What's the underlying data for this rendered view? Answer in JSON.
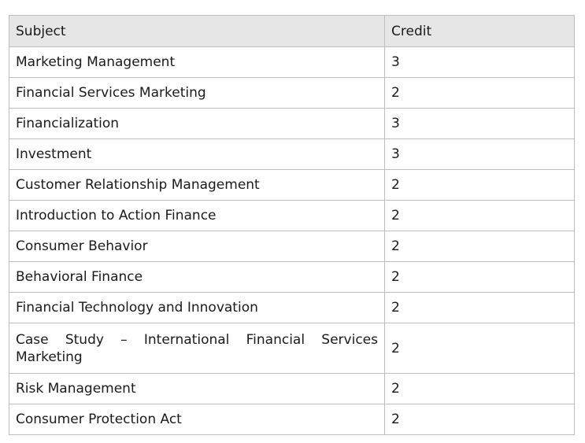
{
  "table": {
    "headers": {
      "subject": "Subject",
      "credit": "Credit"
    },
    "rows": [
      {
        "subject": "Marketing Management",
        "credit": "3"
      },
      {
        "subject": "Financial Services Marketing",
        "credit": "2"
      },
      {
        "subject": "Financialization",
        "credit": "3"
      },
      {
        "subject": "Investment",
        "credit": "3"
      },
      {
        "subject": "Customer Relationship Management",
        "credit": "2"
      },
      {
        "subject": "Introduction to Action Finance",
        "credit": "2"
      },
      {
        "subject": "Consumer Behavior",
        "credit": "2"
      },
      {
        "subject": "Behavioral Finance",
        "credit": "2"
      },
      {
        "subject": "Financial Technology and Innovation",
        "credit": "2"
      },
      {
        "subject": "Case Study – International Financial Services Marketing",
        "credit": "2"
      },
      {
        "subject": "Risk Management",
        "credit": "2"
      },
      {
        "subject": "Consumer Protection Act",
        "credit": "2"
      }
    ]
  }
}
